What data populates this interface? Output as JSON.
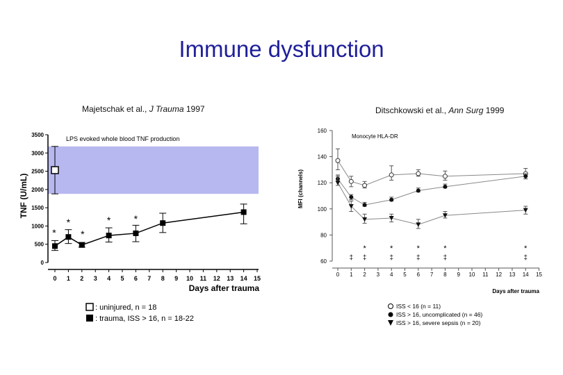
{
  "page": {
    "title": "Immune dysfunction"
  },
  "chart_data": [
    {
      "type": "line",
      "citation": {
        "authors": "Majetschak et al., ",
        "journal": "J Trauma",
        "year": " 1997"
      },
      "title": "LPS evoked whole blood TNF production",
      "ylabel": "TNF (U/mL)",
      "xlabel": "Days after trauma",
      "ylim": [
        0,
        3500
      ],
      "xlim": [
        0,
        15
      ],
      "yticks": [
        "0",
        "500",
        "1000",
        "1500",
        "2000",
        "2500",
        "3000",
        "3500"
      ],
      "xticks": [
        "0",
        "1",
        "2",
        "3",
        "4",
        "5",
        "6",
        "7",
        "8",
        "9",
        "10",
        "11",
        "12",
        "13",
        "14",
        "15"
      ],
      "reference_band": {
        "low": 1880,
        "high": 3180,
        "color": "#b8b8f0"
      },
      "series": [
        {
          "name": ": uninjured, n = 18",
          "marker": "open-square",
          "x": [
            0
          ],
          "y": [
            2530
          ],
          "err_low": [
            1880
          ],
          "err_high": [
            3180
          ]
        },
        {
          "name": ": trauma, ISS > 16, n = 18-22",
          "marker": "filled-square",
          "x": [
            0,
            1,
            2,
            4,
            6,
            8,
            14
          ],
          "y": [
            450,
            700,
            480,
            740,
            800,
            1080,
            1380
          ],
          "err_low": [
            330,
            520,
            420,
            560,
            570,
            820,
            1060
          ],
          "err_high": [
            600,
            900,
            550,
            950,
            1020,
            1350,
            1600
          ]
        }
      ],
      "significance": {
        "label": "*",
        "x": [
          0,
          1,
          2,
          4,
          6
        ]
      },
      "legend_position": "bottom"
    },
    {
      "type": "line",
      "citation": {
        "authors": "Ditschkowski et al., ",
        "journal": "Ann Surg",
        "year": " 1999"
      },
      "title": "Monocyte HLA-DR",
      "ylabel": "MFI (channels)",
      "xlabel": "Days after trauma",
      "ylim": [
        60,
        160
      ],
      "xlim": [
        0,
        15
      ],
      "yticks": [
        "60",
        "80",
        "100",
        "120",
        "140",
        "160"
      ],
      "xticks": [
        "0",
        "1",
        "2",
        "3",
        "4",
        "5",
        "6",
        "7",
        "8",
        "9",
        "10",
        "11",
        "12",
        "13",
        "14",
        "15"
      ],
      "series": [
        {
          "name": "ISS < 16 (n = 11)",
          "marker": "open-circle",
          "x": [
            0,
            1,
            2,
            4,
            6,
            8,
            14
          ],
          "y": [
            137,
            121,
            118,
            126,
            127,
            125,
            127
          ],
          "err_low": [
            130,
            117,
            116,
            122,
            125,
            122,
            123
          ],
          "err_high": [
            146,
            125,
            121,
            133,
            130,
            129,
            131
          ]
        },
        {
          "name": "ISS > 16, uncomplicated (n = 46)",
          "marker": "filled-circle",
          "x": [
            0,
            1,
            2,
            4,
            6,
            8,
            14
          ],
          "y": [
            123,
            109,
            103,
            107,
            114,
            117,
            125
          ],
          "err_low": [
            121,
            107,
            102,
            106,
            113,
            116,
            123
          ],
          "err_high": [
            125,
            111,
            105,
            109,
            116,
            119,
            127
          ]
        },
        {
          "name": "ISS > 16, severe sepsis (n = 20)",
          "marker": "filled-triangle",
          "x": [
            0,
            1,
            2,
            4,
            6,
            8,
            14
          ],
          "y": [
            120,
            102,
            92,
            93,
            88,
            95,
            99
          ],
          "err_low": [
            118,
            98,
            89,
            90,
            85,
            93,
            96
          ],
          "err_high": [
            126,
            106,
            96,
            96,
            92,
            98,
            102
          ]
        }
      ],
      "significance_star": {
        "label": "*",
        "x": [
          2,
          4,
          6,
          8,
          14
        ]
      },
      "significance_dagger": {
        "label": "‡",
        "x": [
          1,
          2,
          4,
          6,
          8,
          14
        ]
      },
      "legend_position": "bottom"
    }
  ]
}
